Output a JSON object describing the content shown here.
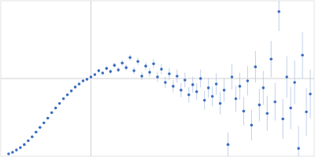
{
  "chart_data": {
    "type": "scatter",
    "x": [
      0.1,
      0.15,
      0.2,
      0.25,
      0.3,
      0.35,
      0.4,
      0.45,
      0.5,
      0.55,
      0.6,
      0.65,
      0.7,
      0.75,
      0.8,
      0.85,
      0.9,
      0.95,
      1.0,
      1.05,
      1.1,
      1.15,
      1.2,
      1.25,
      1.3,
      1.35,
      1.4,
      1.45,
      1.5,
      1.55,
      1.6,
      1.65,
      1.7,
      1.75,
      1.8,
      1.85,
      1.9,
      1.95,
      2.0,
      2.05,
      2.1,
      2.15,
      2.2,
      2.25,
      2.3,
      2.35,
      2.4,
      2.45,
      2.5,
      2.55,
      2.6,
      2.65,
      2.7,
      2.75,
      2.8,
      2.85,
      2.9,
      2.95,
      3.0,
      3.05,
      3.1,
      3.15,
      3.2,
      3.25,
      3.3,
      3.35,
      3.4,
      3.45,
      3.5,
      3.55,
      3.6,
      3.65,
      3.7,
      3.75,
      3.8,
      3.85,
      3.9,
      3.95
    ],
    "values": [
      0.03,
      0.05,
      0.08,
      0.11,
      0.15,
      0.2,
      0.25,
      0.31,
      0.37,
      0.43,
      0.49,
      0.56,
      0.62,
      0.68,
      0.74,
      0.79,
      0.84,
      0.89,
      0.93,
      0.97,
      0.99,
      1.02,
      1.05,
      1.1,
      1.07,
      1.13,
      1.09,
      1.17,
      1.11,
      1.2,
      1.14,
      1.27,
      1.1,
      1.22,
      1.03,
      1.16,
      1.08,
      1.19,
      1.02,
      1.12,
      0.95,
      1.06,
      0.9,
      1.03,
      0.85,
      0.98,
      0.79,
      0.92,
      0.83,
      1.0,
      0.72,
      0.88,
      0.77,
      0.93,
      0.68,
      0.85,
      0.15,
      1.02,
      0.74,
      0.9,
      0.58,
      0.97,
      0.4,
      1.15,
      0.66,
      0.88,
      0.55,
      1.25,
      0.7,
      1.86,
      0.48,
      1.02,
      0.62,
      0.95,
      0.1,
      1.3,
      0.57,
      0.8
    ],
    "errors": [
      0.003,
      0.003,
      0.004,
      0.004,
      0.005,
      0.005,
      0.006,
      0.006,
      0.007,
      0.007,
      0.008,
      0.008,
      0.009,
      0.01,
      0.01,
      0.011,
      0.012,
      0.013,
      0.014,
      0.015,
      0.016,
      0.018,
      0.02,
      0.022,
      0.024,
      0.026,
      0.028,
      0.03,
      0.032,
      0.035,
      0.038,
      0.04,
      0.043,
      0.046,
      0.05,
      0.053,
      0.056,
      0.06,
      0.064,
      0.068,
      0.072,
      0.076,
      0.08,
      0.085,
      0.09,
      0.095,
      0.1,
      0.105,
      0.11,
      0.115,
      0.12,
      0.126,
      0.132,
      0.138,
      0.144,
      0.15,
      0.156,
      0.162,
      0.168,
      0.175,
      0.182,
      0.189,
      0.196,
      0.203,
      0.21,
      0.218,
      0.226,
      0.234,
      0.242,
      0.25,
      0.258,
      0.266,
      0.274,
      0.282,
      0.29,
      0.298,
      0.306,
      0.314
    ],
    "color": "#3a6bbf",
    "marker": "circle",
    "xlim": [
      0,
      4
    ],
    "ylim": [
      0,
      2
    ],
    "xticks": [
      1.15
    ],
    "yticks": [
      1
    ],
    "grid": true,
    "tick_labels": false
  }
}
